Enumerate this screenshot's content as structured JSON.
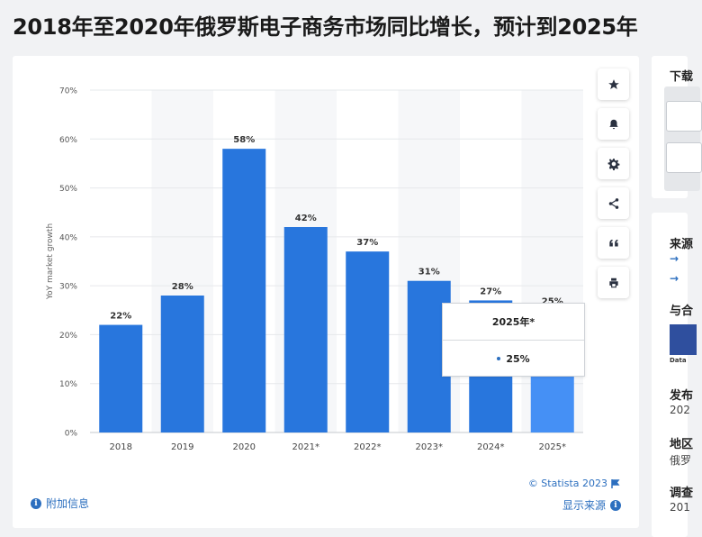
{
  "page": {
    "title": "2018年至2020年俄罗斯电子商务市场同比增长，预计到2025年"
  },
  "chart_data": {
    "type": "bar",
    "categories": [
      "2018",
      "2019",
      "2020",
      "2021*",
      "2022*",
      "2023*",
      "2024*",
      "2025*"
    ],
    "values": [
      22,
      28,
      58,
      42,
      37,
      31,
      27,
      25
    ],
    "value_labels": [
      "22%",
      "28%",
      "58%",
      "42%",
      "37%",
      "31%",
      "27%",
      "25%"
    ],
    "ylabel": "YoY market growth",
    "ylim": [
      0,
      70
    ],
    "yticks": [
      "0%",
      "10%",
      "20%",
      "30%",
      "40%",
      "50%",
      "60%",
      "70%"
    ],
    "ytick_values": [
      0,
      10,
      20,
      30,
      40,
      50,
      60,
      70
    ],
    "grid": true,
    "highlighted_index": 7,
    "colors": {
      "bar": "#2876dd",
      "bar_highlight": "#4590f5",
      "band": "#f6f7f9",
      "grid": "#e6e8eb"
    }
  },
  "tooltip": {
    "title": "2025年*",
    "value": "25%"
  },
  "footer": {
    "credit": "© Statista 2023",
    "show_source": "显示来源",
    "additional_info": "附加信息"
  },
  "toolbar": {
    "icons": [
      "star-icon",
      "bell-icon",
      "gear-icon",
      "share-icon",
      "quote-icon",
      "print-icon"
    ]
  },
  "sidebar": {
    "download_title": "下载",
    "source_title": "来源",
    "with_title": "与合",
    "thumb_caption": "Data",
    "release_title": "发布",
    "release_value": "202",
    "region_title": "地区",
    "region_value": "俄罗",
    "survey_title": "调查",
    "survey_value": "201"
  }
}
